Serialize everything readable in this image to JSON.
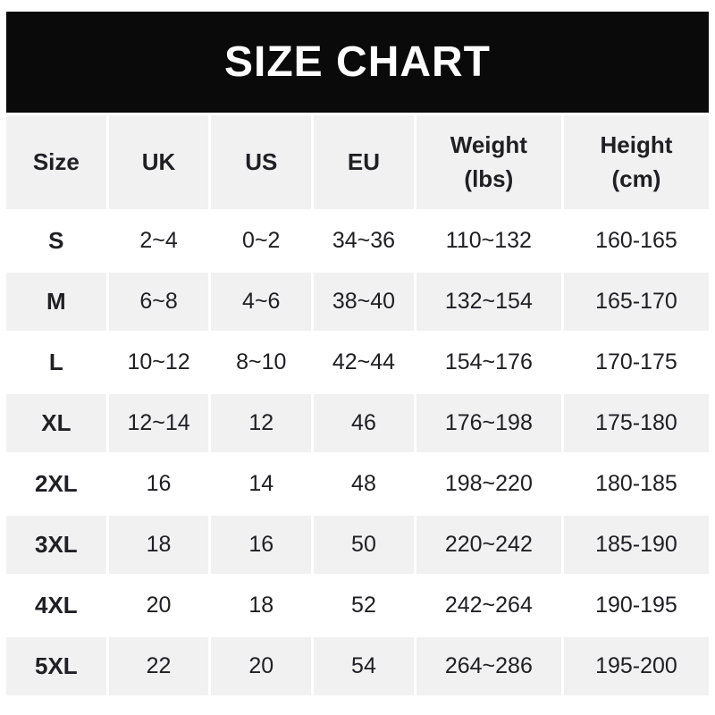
{
  "colors": {
    "banner_bg": "#0a0a0a",
    "banner_text": "#ffffff",
    "row_bg": "#ffffff",
    "row_alt_bg": "#f1f1f2",
    "text_color": "#202024"
  },
  "chart_data": {
    "type": "table",
    "title": "SIZE CHART",
    "columns": [
      "Size",
      "UK",
      "US",
      "EU",
      "Weight\n(lbs)",
      "Height\n(cm)"
    ],
    "rows": [
      [
        "S",
        "2~4",
        "0~2",
        "34~36",
        "110~132",
        "160-165"
      ],
      [
        "M",
        "6~8",
        "4~6",
        "38~40",
        "132~154",
        "165-170"
      ],
      [
        "L",
        "10~12",
        "8~10",
        "42~44",
        "154~176",
        "170-175"
      ],
      [
        "XL",
        "12~14",
        "12",
        "46",
        "176~198",
        "175-180"
      ],
      [
        "2XL",
        "16",
        "14",
        "48",
        "198~220",
        "180-185"
      ],
      [
        "3XL",
        "18",
        "16",
        "50",
        "220~242",
        "185-190"
      ],
      [
        "4XL",
        "20",
        "18",
        "52",
        "242~264",
        "190-195"
      ],
      [
        "5XL",
        "22",
        "20",
        "54",
        "264~286",
        "195-200"
      ]
    ]
  }
}
